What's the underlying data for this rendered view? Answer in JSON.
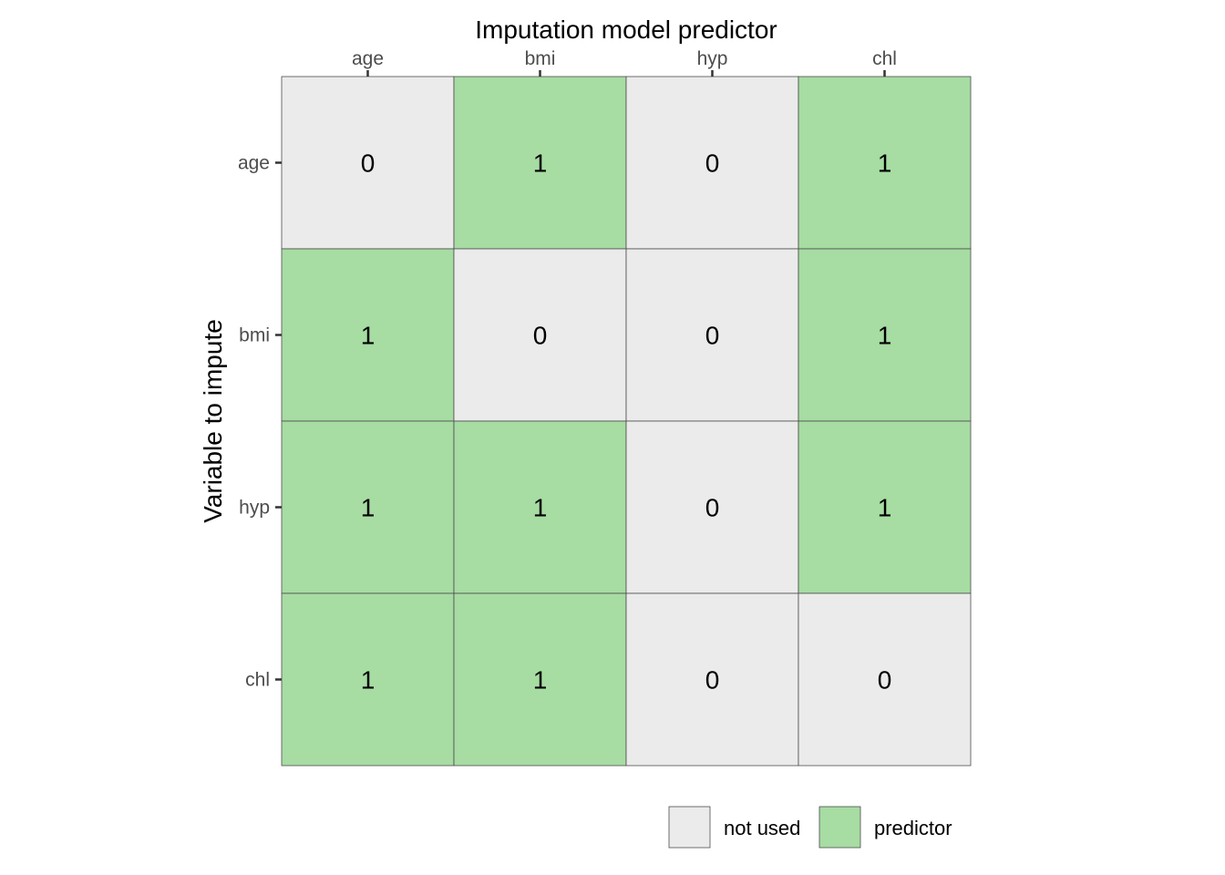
{
  "chart_data": {
    "type": "heatmap",
    "xlabel": "Imputation model predictor",
    "ylabel": "Variable to impute",
    "x_categories": [
      "age",
      "bmi",
      "hyp",
      "chl"
    ],
    "y_categories": [
      "age",
      "bmi",
      "hyp",
      "chl"
    ],
    "values": [
      [
        0,
        1,
        0,
        1
      ],
      [
        1,
        0,
        0,
        1
      ],
      [
        1,
        1,
        0,
        1
      ],
      [
        1,
        1,
        0,
        0
      ]
    ],
    "colors": {
      "0": "#ebebeb",
      "1": "#a7dca3"
    },
    "legend": {
      "position": "bottom-right",
      "entries": [
        {
          "value": 0,
          "label": "not used"
        },
        {
          "value": 1,
          "label": "predictor"
        }
      ]
    }
  }
}
